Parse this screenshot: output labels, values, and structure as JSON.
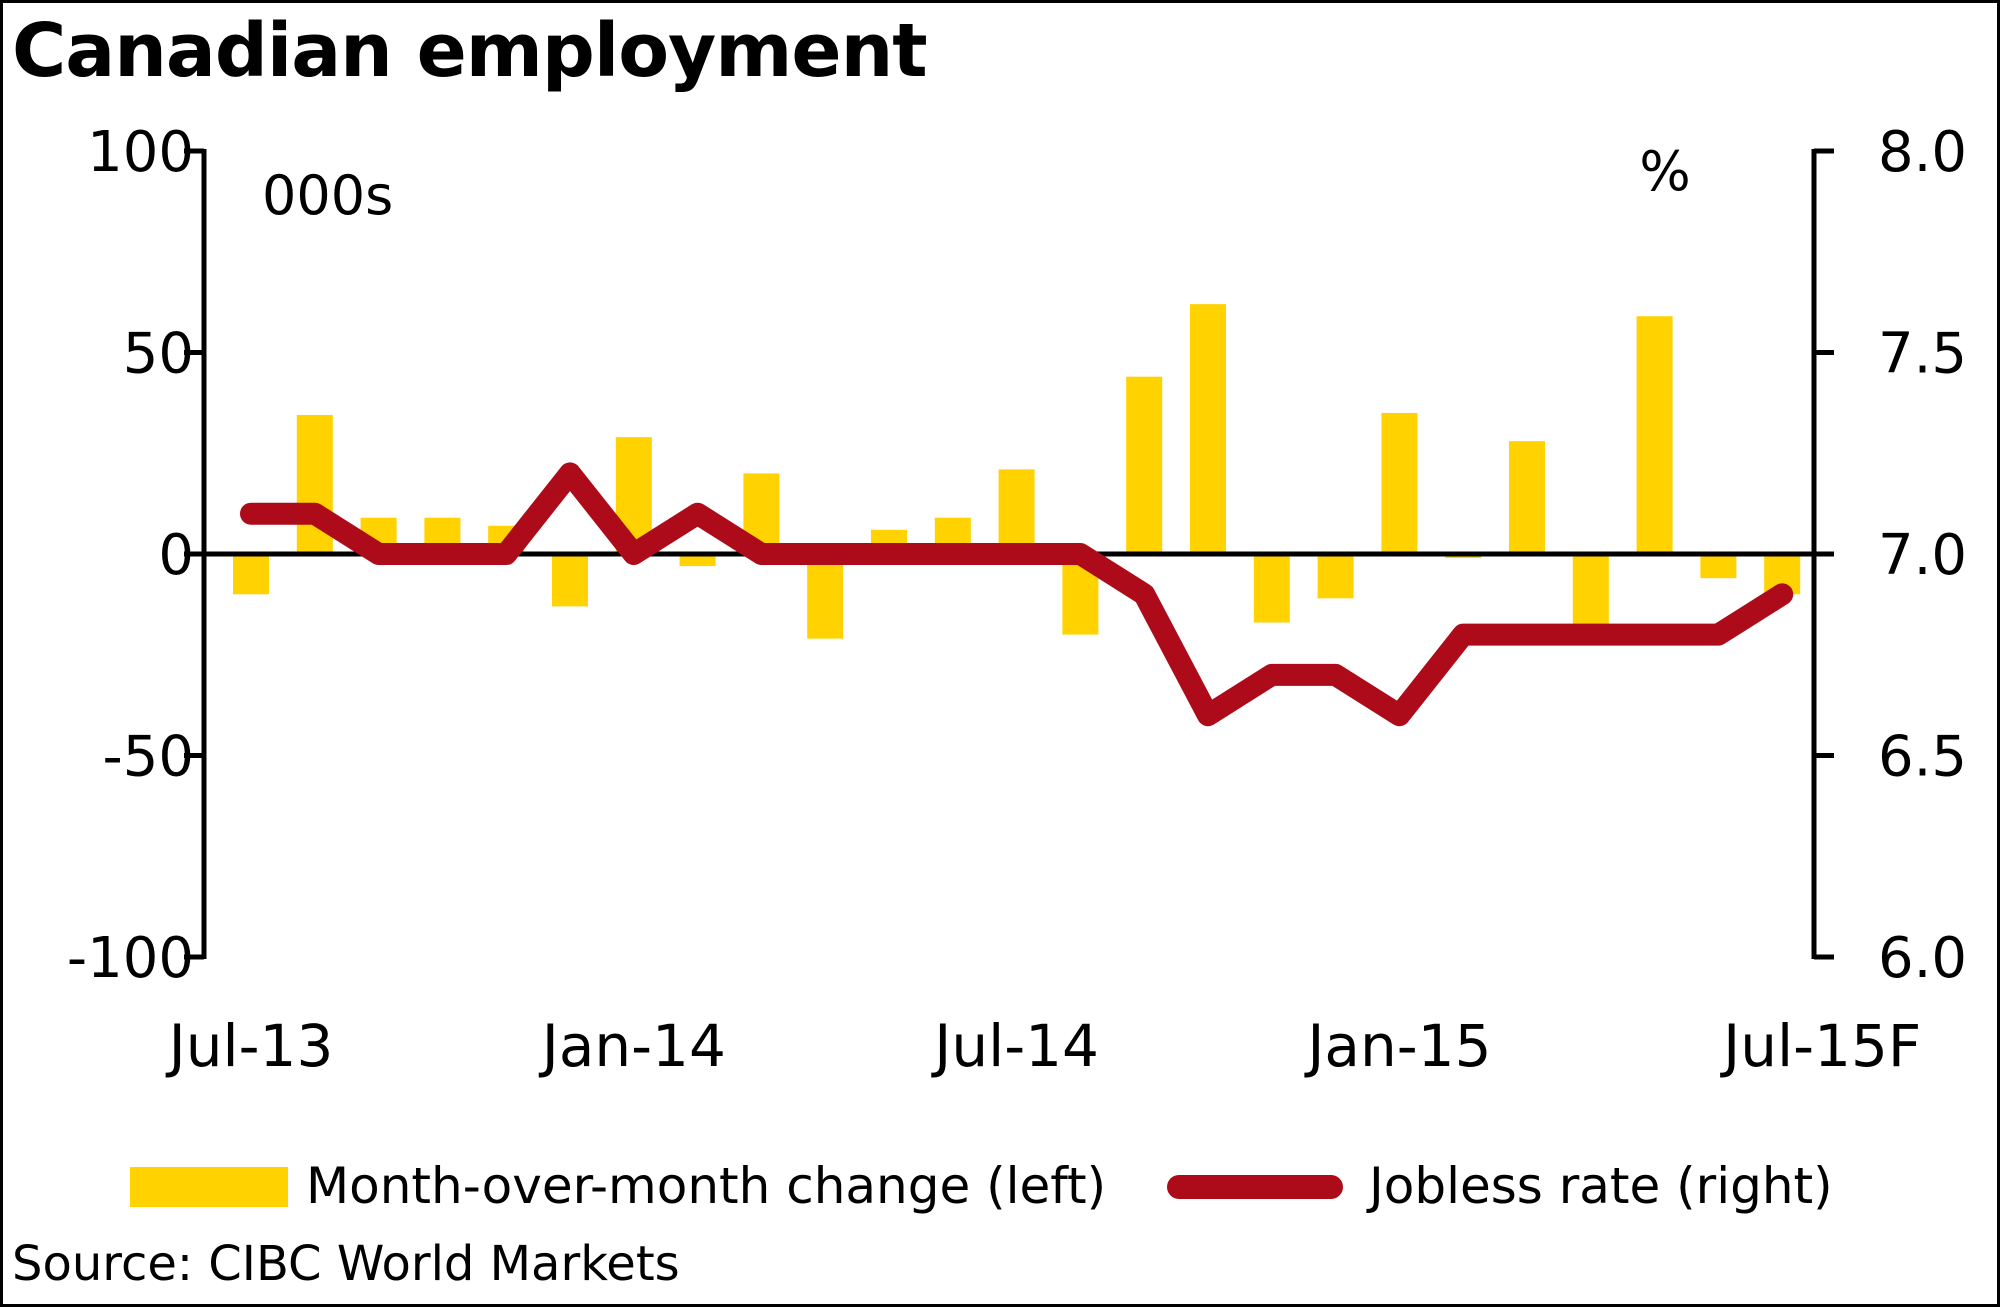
{
  "chart_data": {
    "type": "bar+line",
    "title": "Canadian employment",
    "source": "Source: CIBC World Markets",
    "left_axis": {
      "unit_label": "000s",
      "ylim": [
        -100,
        100
      ],
      "ticks": [
        "100",
        "50",
        "0",
        "-50",
        "-100"
      ],
      "tick_values": [
        100,
        50,
        0,
        -50,
        -100
      ]
    },
    "right_axis": {
      "unit_label": "%",
      "ylim": [
        6.0,
        8.0
      ],
      "ticks": [
        "8.0",
        "7.5",
        "7.0",
        "6.5",
        "6.0"
      ],
      "tick_values": [
        8.0,
        7.5,
        7.0,
        6.5,
        6.0
      ]
    },
    "x_tick_labels": [
      "Jul-13",
      "Jan-14",
      "Jul-14",
      "Jan-15",
      "Jul-15F"
    ],
    "x_tick_indices": [
      0,
      6,
      12,
      18,
      24
    ],
    "categories": [
      "Jul-13",
      "Aug-13",
      "Sep-13",
      "Oct-13",
      "Nov-13",
      "Dec-13",
      "Jan-14",
      "Feb-14",
      "Mar-14",
      "Apr-14",
      "May-14",
      "Jun-14",
      "Jul-14",
      "Aug-14",
      "Sep-14",
      "Oct-14",
      "Nov-14",
      "Dec-14",
      "Jan-15",
      "Feb-15",
      "Mar-15",
      "Apr-15",
      "May-15",
      "Jun-15",
      "Jul-15F"
    ],
    "series": [
      {
        "name": "Month-over-month change (left)",
        "type": "bar",
        "axis": "left",
        "color": "#FFD200",
        "values": [
          -10,
          34.5,
          9,
          9,
          7,
          -13,
          29,
          -3,
          20,
          -21,
          6,
          9,
          21,
          -20,
          44,
          62,
          -17,
          -11,
          35,
          -1,
          28,
          -18,
          59,
          -6,
          -10
        ]
      },
      {
        "name": "Jobless rate (right)",
        "type": "line",
        "axis": "right",
        "color": "#AD0A1A",
        "values": [
          7.1,
          7.1,
          7.0,
          7.0,
          7.0,
          7.2,
          7.0,
          7.1,
          7.0,
          7.0,
          7.0,
          7.0,
          7.0,
          7.0,
          6.9,
          6.6,
          6.7,
          6.7,
          6.6,
          6.8,
          6.8,
          6.8,
          6.8,
          6.8,
          6.9
        ]
      }
    ],
    "grid": false,
    "legend_position": "bottom"
  }
}
